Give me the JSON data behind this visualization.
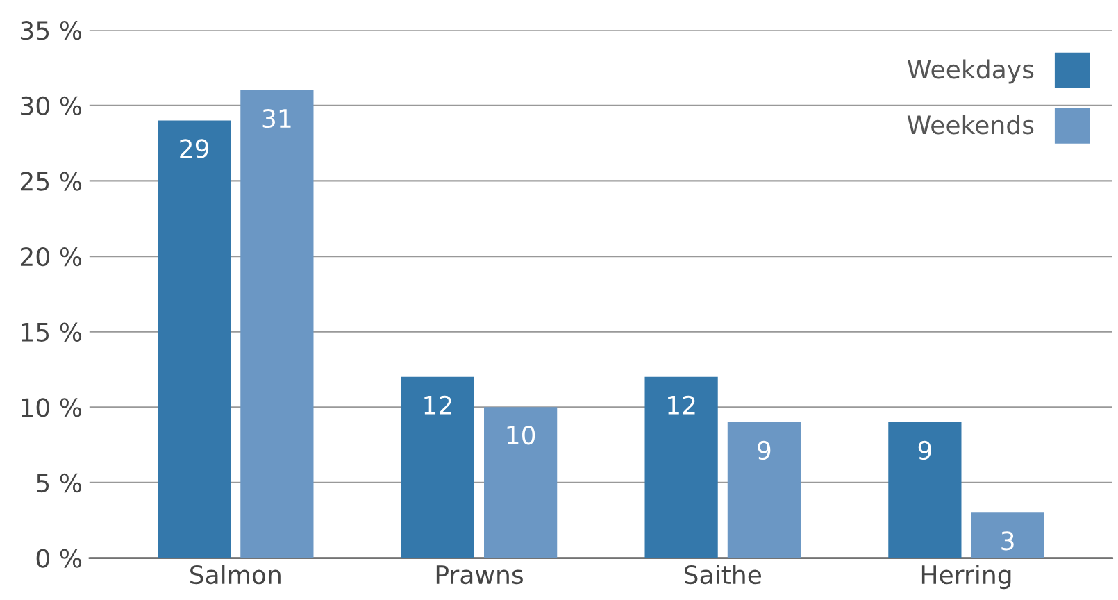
{
  "chart_data": {
    "type": "bar",
    "categories": [
      "Salmon",
      "Prawns",
      "Saithe",
      "Herring"
    ],
    "series": [
      {
        "name": "Weekdays",
        "color": "#3478ab",
        "values": [
          29,
          12,
          12,
          9
        ]
      },
      {
        "name": "Weekends",
        "color": "#6b97c4",
        "values": [
          31,
          10,
          9,
          3
        ]
      }
    ],
    "ylim": [
      0,
      35
    ],
    "yticks": [
      {
        "value": 0,
        "label": "0 %"
      },
      {
        "value": 5,
        "label": "5 %"
      },
      {
        "value": 10,
        "label": "10 %"
      },
      {
        "value": 15,
        "label": "15 %"
      },
      {
        "value": 20,
        "label": "20 %"
      },
      {
        "value": 25,
        "label": "25 %"
      },
      {
        "value": 30,
        "label": "30 %"
      },
      {
        "value": 35,
        "label": "35 %"
      }
    ],
    "grid": "y",
    "legend": "top right",
    "data_labels": true
  }
}
